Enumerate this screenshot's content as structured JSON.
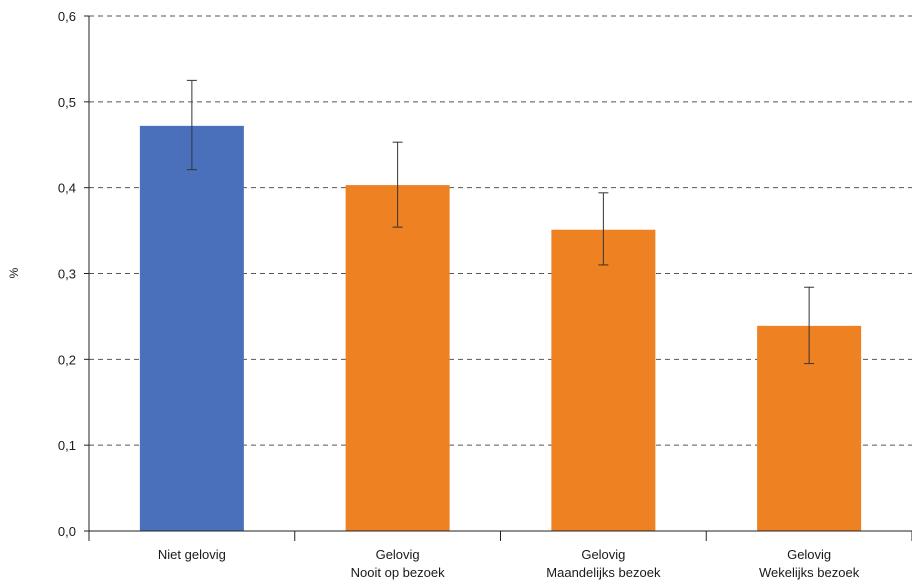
{
  "chart_data": {
    "type": "bar",
    "ylabel": "%",
    "ylim": [
      0,
      0.6
    ],
    "yticks": [
      "0,0",
      "0,1",
      "0,2",
      "0,3",
      "0,4",
      "0,5",
      "0,6"
    ],
    "grid": "horizontal dashed",
    "categories": [
      {
        "line1": "Niet gelovig",
        "line2": ""
      },
      {
        "line1": "Gelovig",
        "line2": "Nooit op bezoek"
      },
      {
        "line1": "Gelovig",
        "line2": "Maandelijks bezoek"
      },
      {
        "line1": "Gelovig",
        "line2": "Wekelijks bezoek"
      }
    ],
    "values": [
      0.472,
      0.403,
      0.351,
      0.239
    ],
    "error_low": [
      0.421,
      0.354,
      0.31,
      0.195
    ],
    "error_high": [
      0.525,
      0.453,
      0.394,
      0.284
    ],
    "colors": [
      "#4a70bb",
      "#ee8222",
      "#ee8222",
      "#ee8222"
    ]
  }
}
